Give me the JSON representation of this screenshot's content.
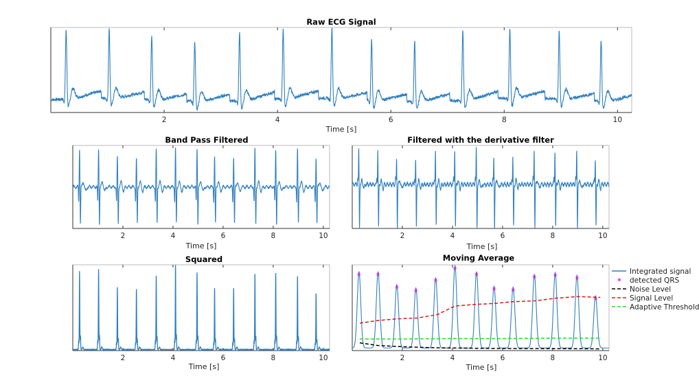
{
  "colors": {
    "signal": "#2f7fbf",
    "qrs_marker": "#e020e0",
    "noise_level": "#000000",
    "signal_level": "#e01818",
    "adaptive_threshold": "#22dd22",
    "axes": "#333333"
  },
  "chart_data": [
    {
      "id": "raw",
      "type": "line",
      "title": "Raw ECG Signal",
      "xlabel": "Time [s]",
      "ylabel": "",
      "xlim": [
        0,
        10.25
      ],
      "xticks": [
        2,
        4,
        6,
        8,
        10
      ],
      "series": [
        {
          "kind": "ecg_raw",
          "beat_times": [
            0.27,
            1.03,
            1.78,
            2.54,
            3.33,
            4.1,
            4.96,
            5.66,
            6.42,
            7.27,
            8.1,
            8.97,
            9.71
          ],
          "beat_peaks": [
            0.97,
            0.97,
            0.9,
            0.86,
            0.96,
            0.98,
            0.99,
            0.86,
            0.87,
            0.97,
            0.98,
            0.96,
            0.87
          ]
        }
      ]
    },
    {
      "id": "bandpass",
      "type": "line",
      "title": "Band Pass Filtered",
      "xlabel": "Time [s]",
      "ylabel": "",
      "xlim": [
        0,
        10.25
      ],
      "xticks": [
        2,
        4,
        6,
        8,
        10
      ],
      "series": [
        {
          "kind": "bandpass",
          "beat_times": [
            0.27,
            1.03,
            1.78,
            2.54,
            3.33,
            4.1,
            4.96,
            5.66,
            6.42,
            7.27,
            8.1,
            8.97,
            9.71
          ],
          "beat_peaks": [
            0.96,
            0.96,
            0.86,
            0.84,
            0.95,
            0.97,
            0.97,
            0.87,
            0.86,
            0.96,
            0.96,
            0.96,
            0.86
          ]
        }
      ]
    },
    {
      "id": "derivative",
      "type": "line",
      "title": "Filtered with the derivative filter",
      "xlabel": "Time [s]",
      "ylabel": "",
      "xlim": [
        0,
        10.25
      ],
      "xticks": [
        2,
        4,
        6,
        8,
        10
      ],
      "series": [
        {
          "kind": "derivative",
          "beat_times": [
            0.27,
            1.03,
            1.78,
            2.54,
            3.33,
            4.1,
            4.96,
            5.66,
            6.42,
            7.27,
            8.1,
            8.97,
            9.71
          ],
          "beat_peaks": [
            0.95,
            0.95,
            0.84,
            0.82,
            0.93,
            0.96,
            0.96,
            0.85,
            0.85,
            0.95,
            0.95,
            0.94,
            0.84
          ]
        }
      ]
    },
    {
      "id": "squared",
      "type": "line",
      "title": "Squared",
      "xlabel": "Time [s]",
      "ylabel": "",
      "xlim": [
        0,
        10.25
      ],
      "xticks": [
        2,
        4,
        6,
        8,
        10
      ],
      "series": [
        {
          "kind": "squared",
          "beat_times": [
            0.27,
            1.03,
            1.78,
            2.54,
            3.33,
            4.1,
            4.96,
            5.66,
            6.42,
            7.27,
            8.1,
            8.97,
            9.71
          ],
          "beat_peaks": [
            0.92,
            0.94,
            0.73,
            0.71,
            0.87,
            1.0,
            0.91,
            0.72,
            0.72,
            0.89,
            0.91,
            0.86,
            0.67
          ]
        }
      ]
    },
    {
      "id": "movavg",
      "type": "line",
      "title": "Moving Average",
      "xlabel": "Time [s]",
      "ylabel": "",
      "xlim": [
        0,
        10.25
      ],
      "xticks": [
        2,
        4,
        6,
        8,
        10
      ],
      "series": [
        {
          "name": "Integrated signal",
          "kind": "integrated",
          "style": "solid",
          "beat_times": [
            0.27,
            1.03,
            1.78,
            2.54,
            3.33,
            4.1,
            4.96,
            5.66,
            6.42,
            7.27,
            8.1,
            8.97,
            9.71
          ],
          "beat_peaks": [
            0.89,
            0.89,
            0.74,
            0.7,
            0.82,
            0.96,
            0.89,
            0.72,
            0.71,
            0.86,
            0.88,
            0.85,
            0.61
          ]
        },
        {
          "name": "detected QRS",
          "kind": "markers",
          "style": "star",
          "x": [
            0.27,
            1.03,
            1.78,
            2.54,
            3.33,
            4.1,
            4.96,
            5.66,
            6.42,
            7.27,
            8.1,
            8.97,
            9.71
          ],
          "y": [
            0.89,
            0.89,
            0.74,
            0.7,
            0.82,
            0.96,
            0.89,
            0.72,
            0.71,
            0.86,
            0.88,
            0.85,
            0.61
          ]
        },
        {
          "name": "Noise Level",
          "kind": "level",
          "style": "dashed",
          "x": [
            0.3,
            1.0,
            2.0,
            3.0,
            4.0,
            5.0,
            6.0,
            7.0,
            8.0,
            9.0,
            9.9
          ],
          "y": [
            0.09,
            0.06,
            0.045,
            0.035,
            0.03,
            0.027,
            0.025,
            0.024,
            0.023,
            0.022,
            0.02
          ]
        },
        {
          "name": "Signal Level",
          "kind": "level",
          "style": "dashed",
          "x": [
            0.3,
            1.0,
            1.8,
            2.6,
            3.4,
            4.1,
            5.0,
            5.7,
            6.4,
            7.3,
            8.1,
            9.0,
            9.9
          ],
          "y": [
            0.32,
            0.35,
            0.37,
            0.38,
            0.42,
            0.52,
            0.54,
            0.55,
            0.57,
            0.58,
            0.61,
            0.63,
            0.62
          ]
        },
        {
          "name": "Adaptive Threshold",
          "kind": "level",
          "style": "dashed",
          "x": [
            0.3,
            2.0,
            4.0,
            6.0,
            8.0,
            9.9
          ],
          "y": [
            0.135,
            0.135,
            0.14,
            0.14,
            0.145,
            0.145
          ]
        }
      ]
    }
  ]
}
